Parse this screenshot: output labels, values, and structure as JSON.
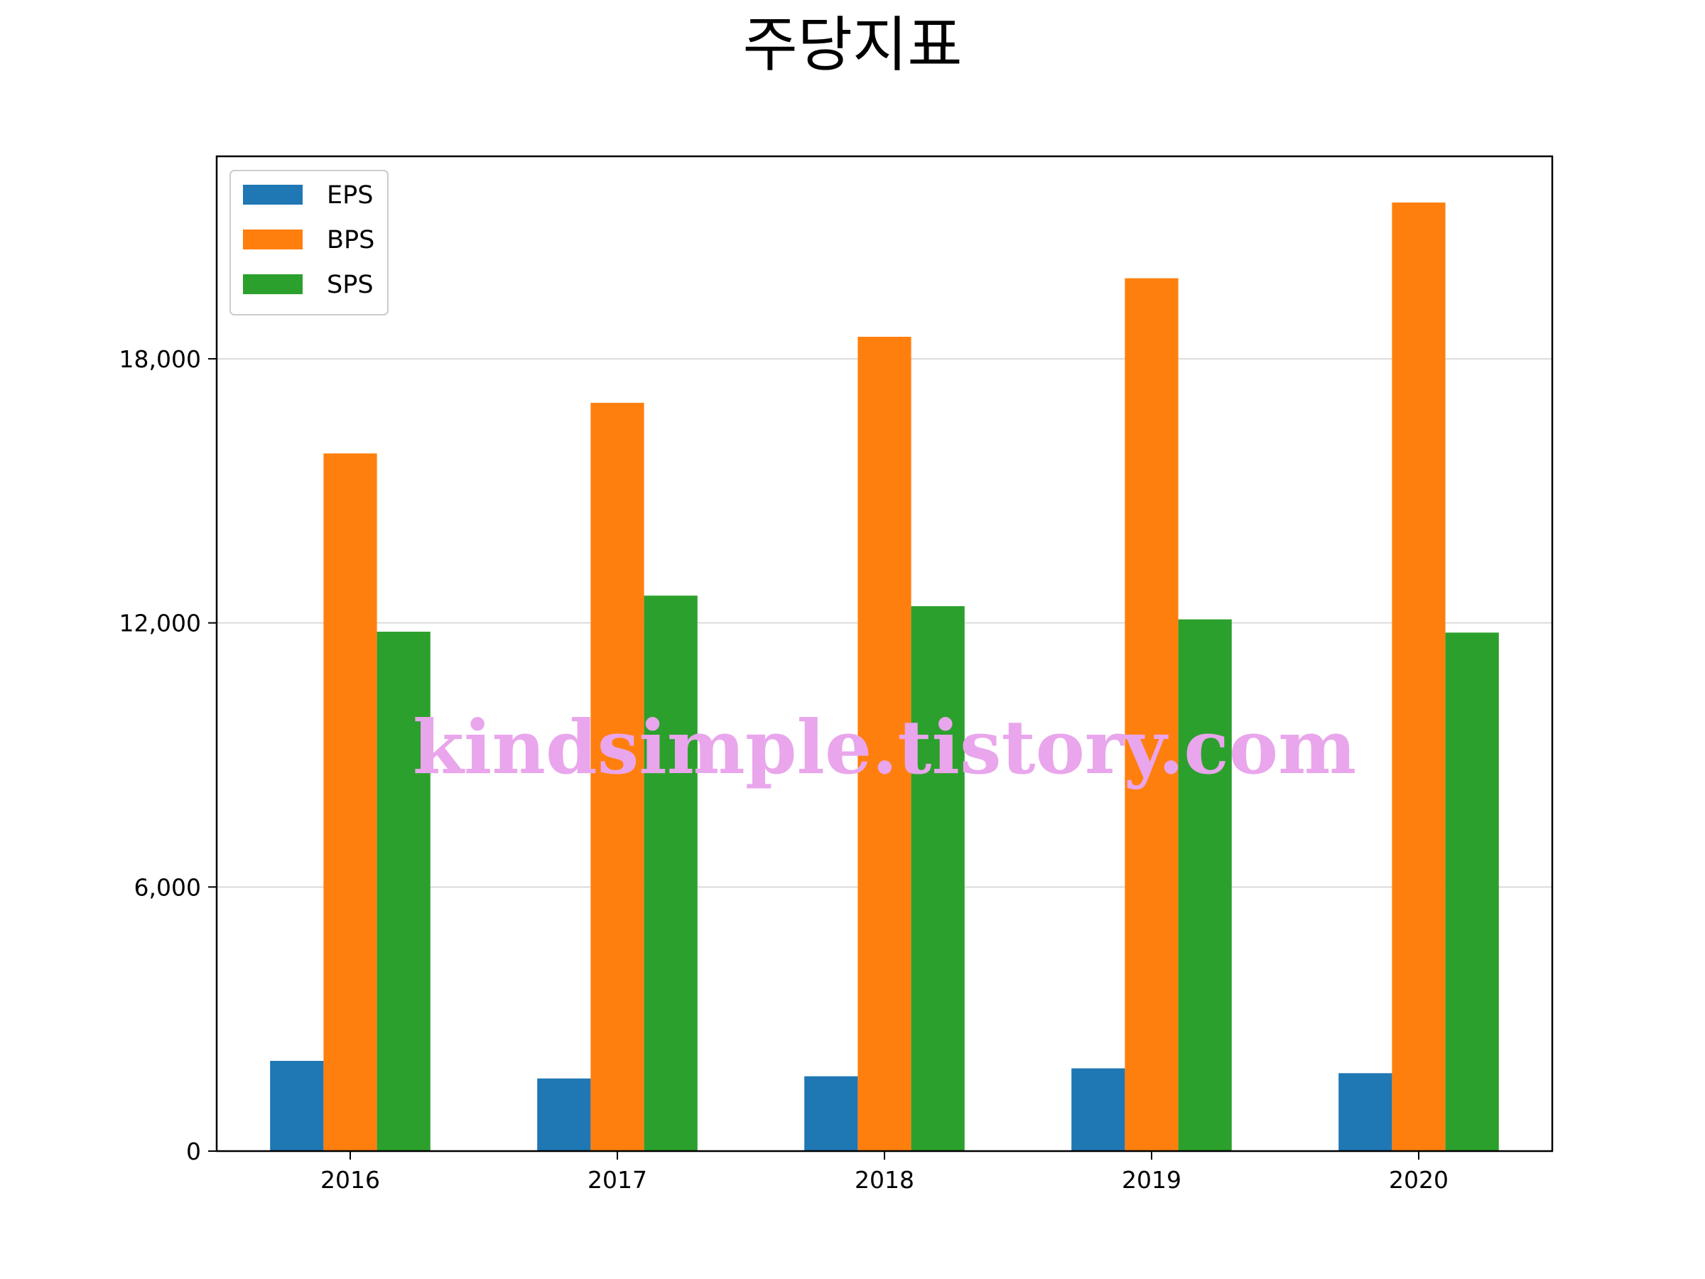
{
  "chart_data": {
    "type": "bar",
    "title": "주당지표",
    "xlabel": "",
    "ylabel": "",
    "categories": [
      "2016",
      "2017",
      "2018",
      "2019",
      "2020"
    ],
    "series": [
      {
        "name": "EPS",
        "values": [
          2050,
          1650,
          1700,
          1880,
          1770
        ],
        "color": "#1f77b4"
      },
      {
        "name": "BPS",
        "values": [
          15850,
          17000,
          18500,
          19830,
          21550
        ],
        "color": "#ff7f0e"
      },
      {
        "name": "SPS",
        "values": [
          11800,
          12620,
          12380,
          12080,
          11780
        ],
        "color": "#2ca02c"
      }
    ],
    "ylim": [
      0,
      22600
    ],
    "yticks": [
      0,
      6000,
      12000,
      18000
    ],
    "ytick_labels": [
      "0",
      "6,000",
      "12,000",
      "18,000"
    ],
    "grid": "y",
    "legend_position": "top-left"
  },
  "watermark": "kindsimple.tistory.com"
}
